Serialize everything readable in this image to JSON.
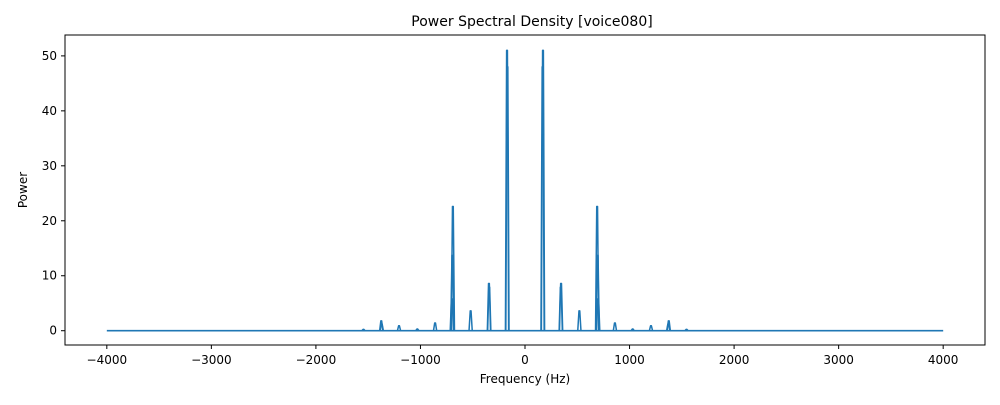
{
  "chart_data": {
    "type": "line",
    "title": "Power Spectral Density [voice080]",
    "xlabel": "Frequency (Hz)",
    "ylabel": "Power",
    "xlim": [
      -4400,
      4400
    ],
    "ylim": [
      -2.6,
      53.8
    ],
    "xticks": [
      -4000,
      -3000,
      -2000,
      -1000,
      0,
      1000,
      2000,
      3000,
      4000
    ],
    "xtick_labels": [
      "−4000",
      "−3000",
      "−2000",
      "−1000",
      "0",
      "1000",
      "2000",
      "3000",
      "4000"
    ],
    "yticks": [
      0,
      10,
      20,
      30,
      40,
      50
    ],
    "ytick_labels": [
      "0",
      "10",
      "20",
      "30",
      "40",
      "50"
    ],
    "grid": false,
    "legend": "none",
    "colors": {
      "line": "#1f77b4",
      "axes": "#000000",
      "background": "#ffffff"
    },
    "x_range": [
      -4000,
      4000
    ],
    "baseline": 0,
    "peaks": [
      {
        "x": -1545,
        "y": 0.25
      },
      {
        "x": -1375,
        "y": 1.8
      },
      {
        "x": -1370,
        "y": 1.2
      },
      {
        "x": -1205,
        "y": 0.9
      },
      {
        "x": -1030,
        "y": 0.3
      },
      {
        "x": -860,
        "y": 1.4
      },
      {
        "x": -700,
        "y": 5.8
      },
      {
        "x": -690,
        "y": 22.6
      },
      {
        "x": -695,
        "y": 13.7
      },
      {
        "x": -520,
        "y": 3.6
      },
      {
        "x": -345,
        "y": 8.6
      },
      {
        "x": -342,
        "y": 7.9
      },
      {
        "x": -172,
        "y": 51.0
      },
      {
        "x": -168,
        "y": 48.0
      },
      {
        "x": 168,
        "y": 48.0
      },
      {
        "x": 172,
        "y": 51.0
      },
      {
        "x": 342,
        "y": 7.9
      },
      {
        "x": 345,
        "y": 8.6
      },
      {
        "x": 520,
        "y": 3.6
      },
      {
        "x": 690,
        "y": 22.6
      },
      {
        "x": 695,
        "y": 13.7
      },
      {
        "x": 700,
        "y": 5.8
      },
      {
        "x": 860,
        "y": 1.4
      },
      {
        "x": 1030,
        "y": 0.3
      },
      {
        "x": 1205,
        "y": 0.9
      },
      {
        "x": 1370,
        "y": 1.2
      },
      {
        "x": 1375,
        "y": 1.8
      },
      {
        "x": 1545,
        "y": 0.25
      }
    ]
  }
}
